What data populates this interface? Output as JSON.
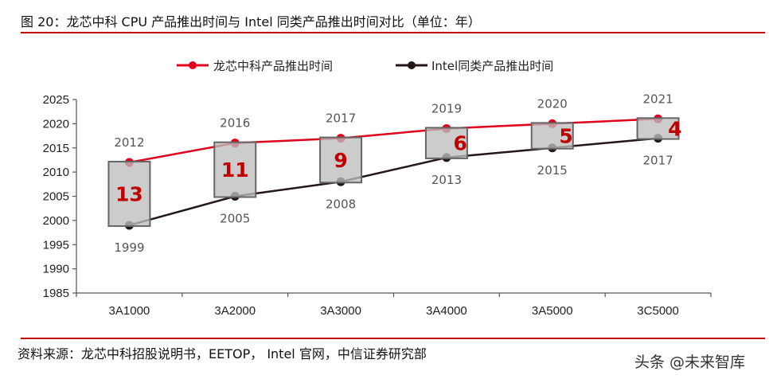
{
  "header": {
    "title": "图 20：龙芯中科 CPU 产品推出时间与 Intel 同类产品推出时间对比（单位：年）"
  },
  "footer": {
    "source": "资料来源：龙芯中科招股说明书，EETOP， Intel 官网，中信证券研究部",
    "watermark": "头条 @未来智库"
  },
  "colors": {
    "accent_rule": "#c00000",
    "loongson_series": "#e0001b",
    "intel_series": "#231815",
    "box_fill": "#cccccc",
    "box_stroke": "#666666",
    "gap_label": "#c00000"
  },
  "chart_data": {
    "type": "line",
    "title": "",
    "xlabel": "",
    "ylabel": "",
    "ylim": [
      1985,
      2025
    ],
    "yticks": [
      1985,
      1990,
      1995,
      2000,
      2005,
      2010,
      2015,
      2020,
      2025
    ],
    "ytick_labels": [
      "1985",
      "1990",
      "1995",
      "2000",
      "2005",
      "2010",
      "2015",
      "2020",
      "2025"
    ],
    "grid": false,
    "legend_position": "top",
    "categories": [
      "3A1000",
      "3A2000",
      "3A3000",
      "3A4000",
      "3A5000",
      "3C5000"
    ],
    "series": [
      {
        "name": "龙芯中科产品推出时间",
        "color": "#e0001b",
        "values": [
          2012,
          2016,
          2017,
          2019,
          2020,
          2021
        ],
        "labels": [
          "2012",
          "2016",
          "2017",
          "2019",
          "2020",
          "2021"
        ]
      },
      {
        "name": "Intel同类产品推出时间",
        "color": "#231815",
        "values": [
          1999,
          2005,
          2008,
          2013,
          2015,
          2017
        ],
        "labels": [
          "1999",
          "2005",
          "2008",
          "2013",
          "2015",
          "2017"
        ]
      }
    ],
    "gap_boxes": {
      "values": [
        13,
        11,
        9,
        6,
        5,
        4
      ],
      "labels": [
        "13",
        "11",
        "9",
        "6",
        "5",
        "4"
      ]
    }
  }
}
